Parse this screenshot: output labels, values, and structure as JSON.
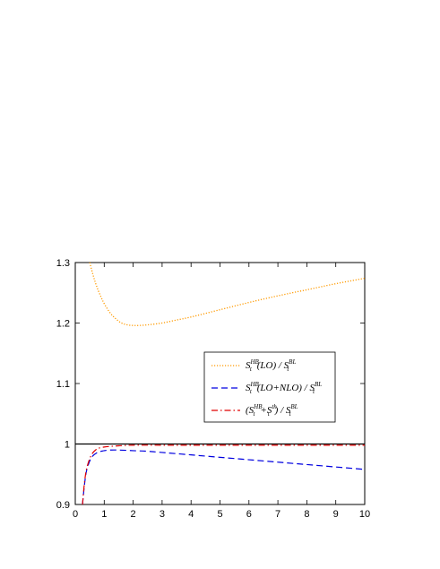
{
  "chart_data": {
    "type": "line",
    "title": "",
    "xlabel": "",
    "ylabel": "",
    "xlim": [
      0,
      10
    ],
    "ylim": [
      0.9,
      1.3
    ],
    "x_ticks": [
      0,
      1,
      2,
      3,
      4,
      5,
      6,
      7,
      8,
      9,
      10
    ],
    "y_ticks": [
      0.9,
      1,
      1.1,
      1.2,
      1.3
    ],
    "x_tick_labels": [
      "0",
      "1",
      "2",
      "3",
      "4",
      "5",
      "6",
      "7",
      "8",
      "9",
      "10"
    ],
    "y_tick_labels": [
      "0.9",
      "1",
      "1.1",
      "1.2",
      "1.3"
    ],
    "grid": false,
    "legend_position": "center-right",
    "reference_line": {
      "y": 1,
      "color": "#000000"
    },
    "series": [
      {
        "legend": {
          "base": "S",
          "sub": "t",
          "sup": "HB",
          "text": "(LO) / ",
          "base2": "S",
          "sub2": "t",
          "sup2": "BL"
        },
        "style": "dotted",
        "color": "#ff9a00",
        "x": [
          0.5,
          0.6,
          0.7,
          0.8,
          0.9,
          1.0,
          1.2,
          1.4,
          1.6,
          1.8,
          2.0,
          2.2,
          2.5,
          3.0,
          3.5,
          4.0,
          5.0,
          6.0,
          7.0,
          8.0,
          9.0,
          10.0
        ],
        "y": [
          1.3,
          1.282,
          1.266,
          1.253,
          1.242,
          1.232,
          1.217,
          1.207,
          1.2,
          1.197,
          1.196,
          1.196,
          1.197,
          1.2,
          1.205,
          1.21,
          1.222,
          1.234,
          1.245,
          1.255,
          1.265,
          1.274
        ]
      },
      {
        "legend": {
          "base": "S",
          "sub": "t",
          "sup": "HB",
          "text": "(LO+NLO) / ",
          "base2": "S",
          "sub2": "t",
          "sup2": "BL"
        },
        "style": "dashed",
        "color": "#0000e0",
        "x": [
          0.25,
          0.3,
          0.35,
          0.4,
          0.5,
          0.6,
          0.7,
          0.8,
          0.9,
          1.0,
          1.2,
          1.5,
          2.0,
          2.5,
          3.0,
          4.0,
          5.0,
          6.0,
          7.0,
          8.0,
          9.0,
          10.0
        ],
        "y": [
          0.9,
          0.925,
          0.945,
          0.958,
          0.972,
          0.98,
          0.984,
          0.987,
          0.988,
          0.989,
          0.99,
          0.99,
          0.989,
          0.988,
          0.986,
          0.982,
          0.978,
          0.974,
          0.97,
          0.966,
          0.962,
          0.958
        ]
      },
      {
        "legend": {
          "text_pre": "(",
          "base": "S",
          "sub": "t",
          "sup": "HB",
          "plus": "+",
          "base3": "S",
          "sub3": "t",
          "sup3": "th",
          "text": ") / ",
          "base2": "S",
          "sub2": "t",
          "sup2": "BL"
        },
        "style": "dashdot",
        "color": "#e00000",
        "x": [
          0.25,
          0.3,
          0.35,
          0.4,
          0.5,
          0.6,
          0.7,
          0.8,
          1.0,
          1.2,
          1.5,
          2.0,
          3.0,
          4.0,
          6.0,
          8.0,
          10.0
        ],
        "y": [
          0.9,
          0.928,
          0.948,
          0.961,
          0.976,
          0.985,
          0.99,
          0.993,
          0.995,
          0.996,
          0.997,
          0.998,
          0.998,
          0.998,
          0.998,
          0.998,
          0.998
        ]
      }
    ]
  }
}
